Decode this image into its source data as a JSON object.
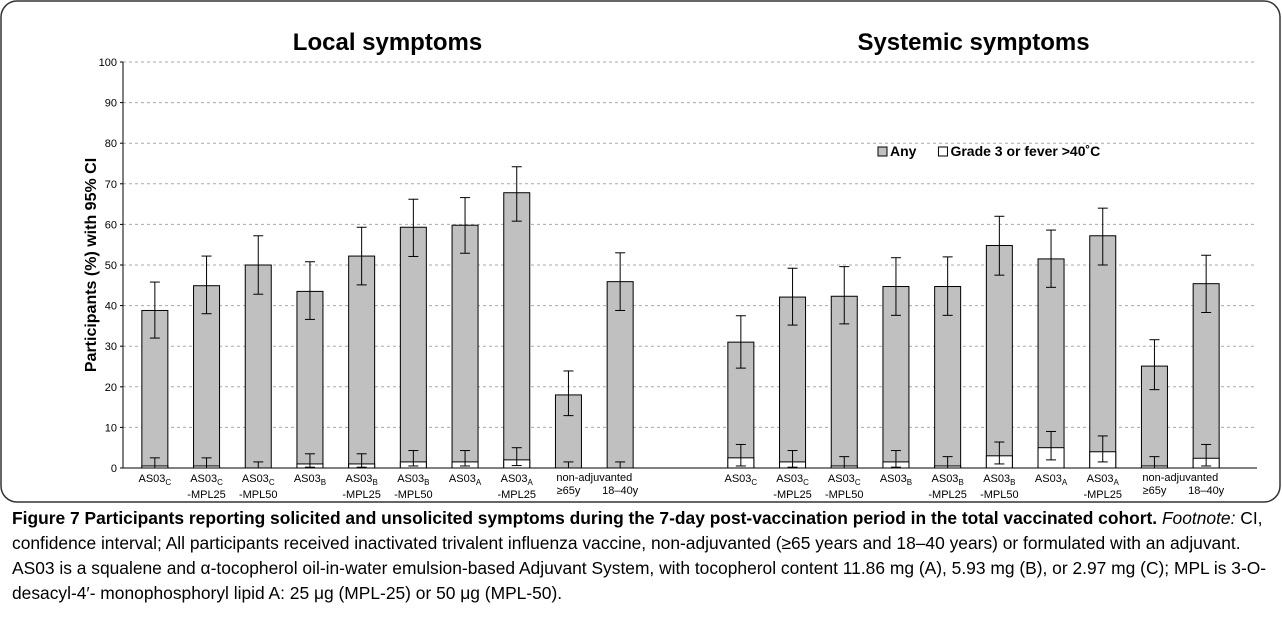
{
  "chart_data": {
    "type": "bar",
    "ylabel": "Participants (%) with 95% CI",
    "ylim": [
      0,
      100
    ],
    "yticks": [
      0,
      10,
      20,
      30,
      40,
      50,
      60,
      70,
      80,
      90,
      100
    ],
    "grid": true,
    "legend": "top-right",
    "series_names": [
      "Any",
      "Grade 3 or fever >40˚C"
    ],
    "series_colors": [
      "#c0c0c0",
      "#ffffff"
    ],
    "panels": [
      {
        "title": "Local symptoms",
        "group_label": "non-adjuvanted",
        "categories": [
          {
            "base": "AS03",
            "sub": "C"
          },
          {
            "base": "AS03",
            "sub": "C",
            "suffix": "-MPL25"
          },
          {
            "base": "AS03",
            "sub": "C",
            "suffix": "-MPL50"
          },
          {
            "base": "AS03",
            "sub": "B"
          },
          {
            "base": "AS03",
            "sub": "B",
            "suffix": "-MPL25"
          },
          {
            "base": "AS03",
            "sub": "B",
            "suffix": "-MPL50"
          },
          {
            "base": "AS03",
            "sub": "A"
          },
          {
            "base": "AS03",
            "sub": "A",
            "suffix": "-MPL25"
          },
          {
            "base": "≥65y"
          },
          {
            "base": "18–40y"
          }
        ],
        "series": [
          {
            "name": "Any",
            "color": "#c0c0c0",
            "values": [
              38.8,
              44.9,
              50.0,
              43.5,
              52.2,
              59.3,
              59.8,
              67.8,
              18.0,
              45.9
            ],
            "lower": [
              32.0,
              38.0,
              42.8,
              36.6,
              45.1,
              52.1,
              52.9,
              60.8,
              12.9,
              38.8
            ],
            "upper": [
              45.8,
              52.2,
              57.2,
              50.8,
              59.3,
              66.2,
              66.6,
              74.2,
              23.9,
              53.0
            ]
          },
          {
            "name": "Grade 3 or fever >40˚C",
            "color": "#ffffff",
            "values": [
              0.5,
              0.5,
              0,
              1.0,
              1.0,
              1.5,
              1.5,
              2.0,
              0,
              0
            ],
            "lower": [
              0,
              0,
              0,
              0.2,
              0.2,
              0.5,
              0.5,
              0.6,
              0,
              0
            ],
            "upper": [
              2.5,
              2.5,
              1.5,
              3.5,
              3.5,
              4.3,
              4.3,
              5.0,
              1.5,
              1.5
            ]
          }
        ]
      },
      {
        "title": "Systemic symptoms",
        "group_label": "non-adjuvanted",
        "categories": [
          {
            "base": "AS03",
            "sub": "C"
          },
          {
            "base": "AS03",
            "sub": "C",
            "suffix": "-MPL25"
          },
          {
            "base": "AS03",
            "sub": "C",
            "suffix": "-MPL50"
          },
          {
            "base": "AS03",
            "sub": "B"
          },
          {
            "base": "AS03",
            "sub": "B",
            "suffix": "-MPL25"
          },
          {
            "base": "AS03",
            "sub": "B",
            "suffix": "-MPL50"
          },
          {
            "base": "AS03",
            "sub": "A"
          },
          {
            "base": "AS03",
            "sub": "A",
            "suffix": "-MPL25"
          },
          {
            "base": "≥65y"
          },
          {
            "base": "18–40y"
          }
        ],
        "series": [
          {
            "name": "Any",
            "color": "#c0c0c0",
            "values": [
              31.0,
              42.1,
              42.3,
              44.7,
              44.7,
              54.8,
              51.5,
              57.2,
              25.1,
              45.4
            ],
            "lower": [
              24.6,
              35.2,
              35.5,
              37.6,
              37.6,
              47.5,
              44.5,
              50.0,
              19.3,
              38.3
            ],
            "upper": [
              37.5,
              49.2,
              49.6,
              51.8,
              52.0,
              62.0,
              58.6,
              64.0,
              31.6,
              52.4
            ]
          },
          {
            "name": "Grade 3 or fever >40˚C",
            "color": "#ffffff",
            "values": [
              2.5,
              1.5,
              0.5,
              1.5,
              0.5,
              3.0,
              5.0,
              4.0,
              0.5,
              2.4
            ],
            "lower": [
              0.5,
              0.2,
              0,
              0.2,
              0,
              1.0,
              2.0,
              1.5,
              0,
              0.5
            ],
            "upper": [
              5.8,
              4.3,
              2.8,
              4.3,
              2.8,
              6.4,
              9.0,
              7.9,
              2.8,
              5.8
            ]
          }
        ]
      }
    ]
  },
  "caption": {
    "figure_label": "Figure 7",
    "title": "Participants reporting solicited and unsolicited symptoms during the 7-day post-vaccination period in the total vaccinated cohort.",
    "footnote_label": "Footnote:",
    "footnote_text": "CI, confidence interval; All participants received inactivated trivalent influenza vaccine, non-adjuvanted (≥65 years and 18–40 years) or formulated with an adjuvant. AS03 is a squalene and α-tocopherol oil-in-water emulsion-based Adjuvant System, with tocopherol content 11.86 mg (A), 5.93 mg (B), or 2.97 mg (C); MPL is 3-O-desacyl-4′- monophosphoryl lipid A: 25 μg (MPL-25) or 50 μg (MPL-50)."
  }
}
